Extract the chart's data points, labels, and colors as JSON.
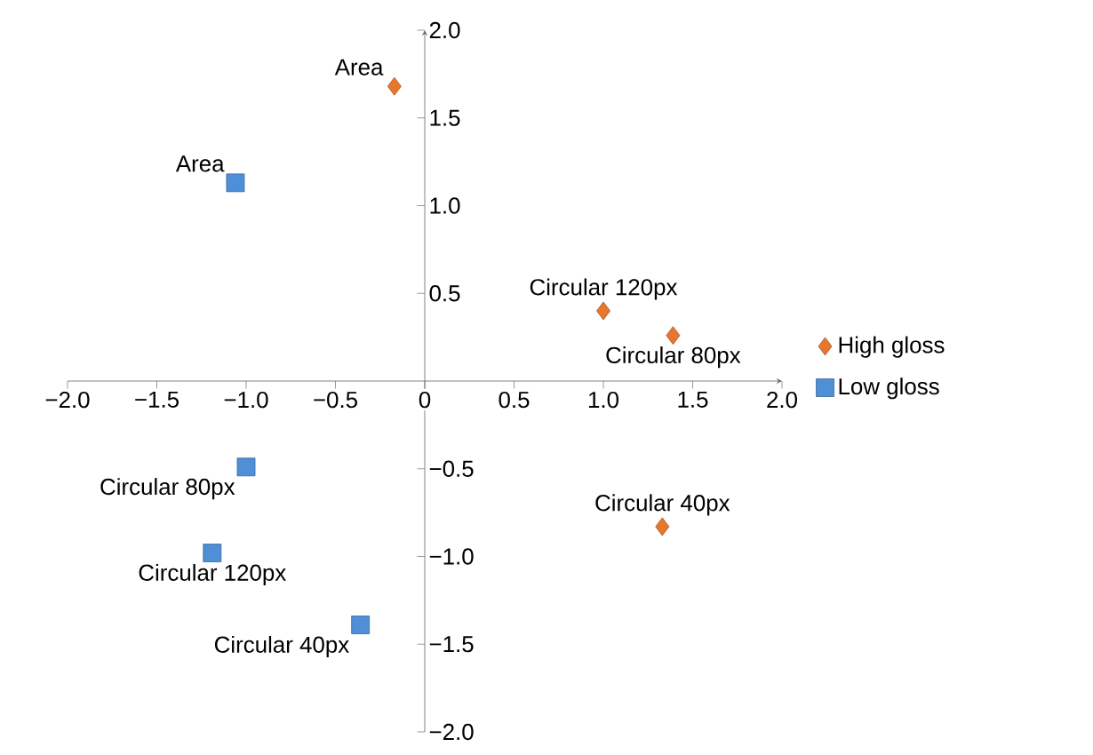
{
  "chart_data": {
    "type": "scatter",
    "series": [
      {
        "name": "High gloss",
        "color": "#e8772e",
        "marker": "diamond",
        "x": [
          -0.17,
          1.0,
          1.39,
          1.33
        ],
        "values": [
          1.68,
          0.4,
          0.26,
          -0.83
        ]
      },
      {
        "name": "Low gloss",
        "color": "#4f8fd8",
        "marker": "square",
        "x": [
          -1.06,
          -1.0,
          -1.19,
          -0.36
        ],
        "values": [
          1.13,
          -0.49,
          -0.98,
          -1.39
        ]
      }
    ],
    "annotations": [
      {
        "text": "Area",
        "x": -0.17,
        "y": 1.68
      },
      {
        "text": "Circular 120px",
        "x": 1.0,
        "y": 0.4
      },
      {
        "text": "Circular 80px",
        "x": 1.39,
        "y": 0.26
      },
      {
        "text": "Circular 40px",
        "x": 1.33,
        "y": -0.83
      },
      {
        "text": "Area",
        "x": -1.06,
        "y": 1.13
      },
      {
        "text": "Circular 80px",
        "x": -1.0,
        "y": -0.49
      },
      {
        "text": "Circular 120px",
        "x": -1.19,
        "y": -0.98
      },
      {
        "text": "Circular 40px",
        "x": -0.36,
        "y": -1.39
      }
    ],
    "xlim": [
      -2,
      2
    ],
    "ylim": [
      -2,
      2
    ],
    "xticks": [
      {
        "value": -2,
        "label": "−2.0"
      },
      {
        "value": -1.5,
        "label": "−1.5"
      },
      {
        "value": -1,
        "label": "−1.0"
      },
      {
        "value": -0.5,
        "label": "−0.5"
      },
      {
        "value": 0,
        "label": "0"
      },
      {
        "value": 0.5,
        "label": "0.5"
      },
      {
        "value": 1,
        "label": "1.0"
      },
      {
        "value": 1.5,
        "label": "1.5"
      },
      {
        "value": 2,
        "label": "2.0"
      }
    ],
    "yticks": [
      {
        "value": -2,
        "label": "−2.0"
      },
      {
        "value": -1.5,
        "label": "−1.5"
      },
      {
        "value": -1,
        "label": "−1.0"
      },
      {
        "value": -0.5,
        "label": "−0.5"
      },
      {
        "value": 0,
        "label": null
      },
      {
        "value": 0.5,
        "label": "0.5"
      },
      {
        "value": 1,
        "label": "1.0"
      },
      {
        "value": 1.5,
        "label": "1.5"
      },
      {
        "value": 2,
        "label": "2.0"
      }
    ],
    "legend": "right",
    "grid": false
  }
}
